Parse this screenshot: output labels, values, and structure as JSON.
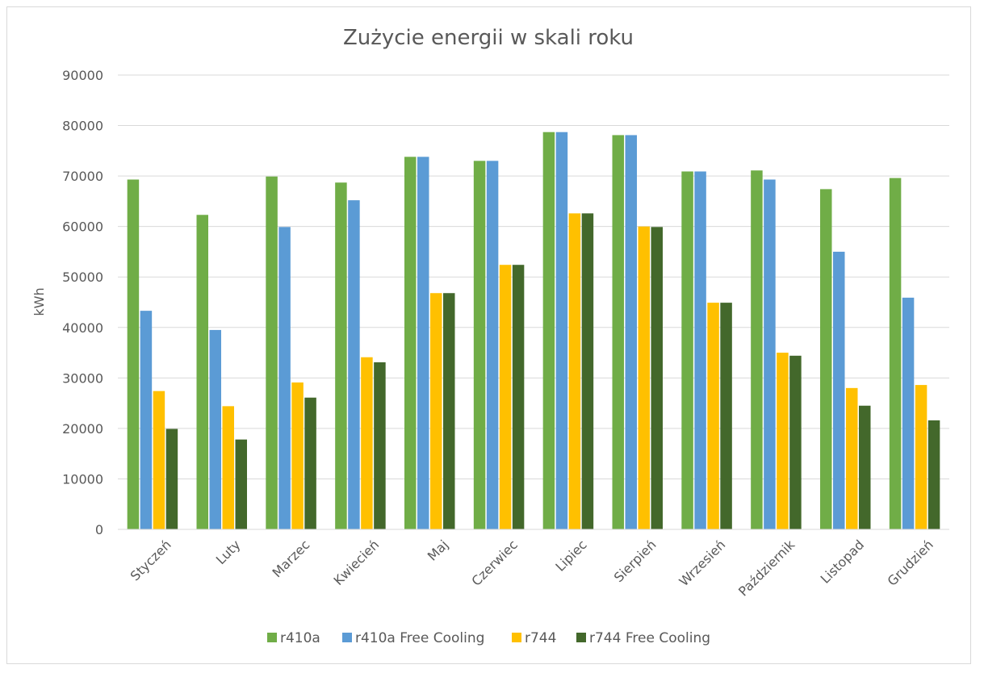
{
  "chart_data": {
    "type": "bar",
    "title": "Zużycie energii w skali roku",
    "ylabel": "kWh",
    "xlabel": "",
    "ylim": [
      0,
      90000
    ],
    "yticks": [
      0,
      10000,
      20000,
      30000,
      40000,
      50000,
      60000,
      70000,
      80000,
      90000
    ],
    "grid": true,
    "legend_position": "bottom",
    "categories": [
      "Styczeń",
      "Luty",
      "Marzec",
      "Kwiecień",
      "Maj",
      "Czerwiec",
      "Lipiec",
      "Sierpień",
      "Wrzesień",
      "Październik",
      "Listopad",
      "Grudzień"
    ],
    "series": [
      {
        "name": "r410a",
        "color": "#70ad47",
        "values": [
          69300,
          62300,
          69900,
          68700,
          73800,
          73000,
          78700,
          78100,
          70900,
          71100,
          67400,
          69600
        ]
      },
      {
        "name": "r410a Free Cooling",
        "color": "#5b9bd5",
        "values": [
          43300,
          39500,
          59900,
          65200,
          73800,
          73000,
          78700,
          78100,
          70900,
          69300,
          55000,
          45900
        ]
      },
      {
        "name": "r744",
        "color": "#ffc000",
        "values": [
          27400,
          24400,
          29100,
          34100,
          46800,
          52400,
          62600,
          60000,
          44900,
          35000,
          28000,
          28600
        ]
      },
      {
        "name": "r744 Free Cooling",
        "color": "#43682b",
        "values": [
          19900,
          17800,
          26100,
          33100,
          46800,
          52400,
          62600,
          59900,
          44900,
          34400,
          24500,
          21600
        ]
      }
    ]
  }
}
